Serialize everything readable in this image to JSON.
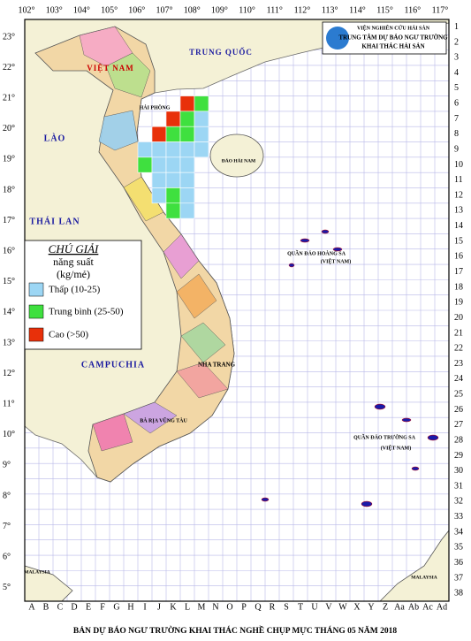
{
  "title": "BẢN DỰ BÁO NGƯ TRƯỜNG KHAI THÁC NGHỀ CHỤP MỰC THÁNG 05 NĂM 2018",
  "header": {
    "org_lines": [
      "VIỆN NGHIÊN CỨU HẢI SẢN",
      "TRUNG TÂM DỰ BÁO NGƯ TRƯỜNG",
      "KHAI THÁC HẢI SẢN"
    ]
  },
  "longitudes": [
    "102°",
    "103°",
    "104°",
    "105°",
    "106°",
    "107°",
    "108°",
    "109°",
    "110°",
    "111°",
    "112°",
    "113°",
    "114°",
    "115°",
    "116°",
    "117°"
  ],
  "latitudes": [
    "23°",
    "22°",
    "21°",
    "20°",
    "19°",
    "18°",
    "17°",
    "16°",
    "15°",
    "14°",
    "13°",
    "12°",
    "11°",
    "10°",
    "9°",
    "8°",
    "7°",
    "6°",
    "5°"
  ],
  "rows": [
    "1",
    "2",
    "3",
    "4",
    "5",
    "6",
    "7",
    "8",
    "9",
    "10",
    "11",
    "12",
    "13",
    "14",
    "15",
    "16",
    "17",
    "18",
    "19",
    "20",
    "21",
    "22",
    "23",
    "24",
    "25",
    "26",
    "27",
    "28",
    "29",
    "30",
    "31",
    "32",
    "33",
    "34",
    "35",
    "36",
    "37",
    "38"
  ],
  "columns": [
    "A",
    "B",
    "C",
    "D",
    "E",
    "F",
    "G",
    "H",
    "I",
    "J",
    "K",
    "L",
    "M",
    "N",
    "O",
    "P",
    "Q",
    "R",
    "S",
    "T",
    "U",
    "V",
    "W",
    "X",
    "Y",
    "Z",
    "Aa",
    "Ab",
    "Ac",
    "Ad"
  ],
  "legend": {
    "title": "CHÚ GIẢI",
    "subtitle": "năng suất",
    "unit": "(kg/mẻ)",
    "items": [
      "Thấp (10-25)",
      "Trung bình (25-50)",
      "Cao (>50)"
    ]
  },
  "labels": [
    "TRUNG QUỐC",
    "VIỆT NAM",
    "LÀO",
    "THÁI LAN",
    "CAMPUCHIA",
    "ĐẢO HẢI NAM",
    "QUẦN ĐẢO HOÀNG SA",
    "(VIỆT NAM)",
    "QUẦN ĐẢO TRƯỜNG SA",
    "(VIỆT NAM)",
    "MALAYSIA",
    "MALAYSIA",
    "HẢI PHÒNG",
    "NHA TRANG",
    "BÀ RỊA VŨNG TÀU"
  ]
}
